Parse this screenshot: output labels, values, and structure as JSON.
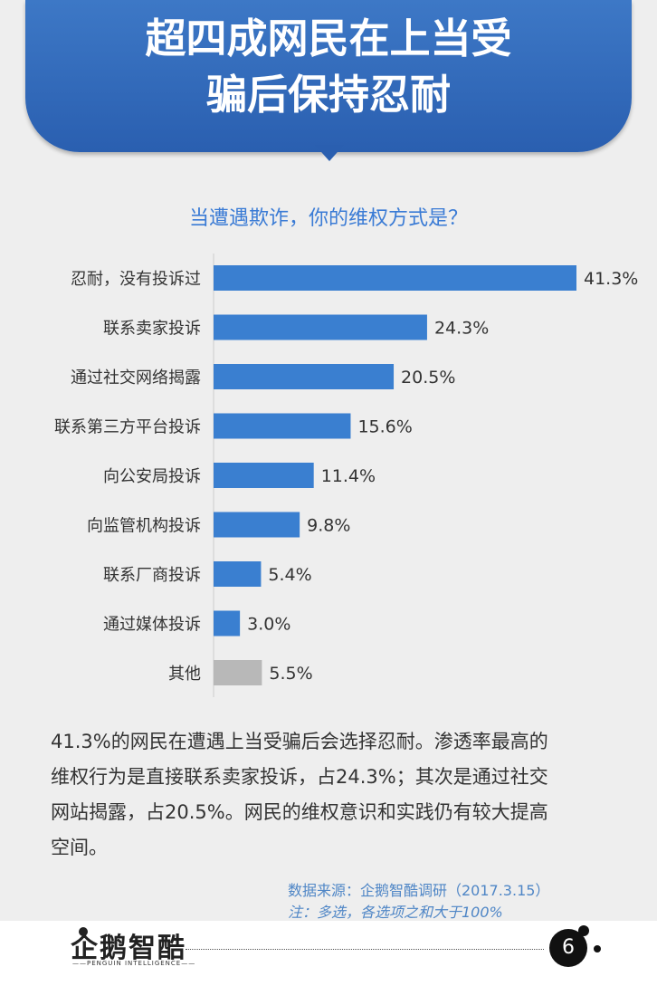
{
  "header": {
    "title_line1": "超四成网民在上当受",
    "title_line2": "骗后保持忍耐"
  },
  "chart_data": {
    "type": "bar",
    "orientation": "horizontal",
    "title": "当遭遇欺诈，你的维权方式是？",
    "categories": [
      "忍耐，没有投诉过",
      "联系卖家投诉",
      "通过社交网络揭露",
      "联系第三方平台投诉",
      "向公安局投诉",
      "向监管机构投诉",
      "联系厂商投诉",
      "通过媒体投诉",
      "其他"
    ],
    "values": [
      41.3,
      24.3,
      20.5,
      15.6,
      11.4,
      9.8,
      5.4,
      3.0,
      5.5
    ],
    "value_labels": [
      "41.3%",
      "24.3%",
      "20.5%",
      "15.6%",
      "11.4%",
      "9.8%",
      "5.4%",
      "3.0%",
      "5.5%"
    ],
    "unit": "%",
    "xlim": [
      0,
      42
    ],
    "grid": false,
    "bar_color": "#3a7fd0",
    "other_bar_color": "#b8b8b8"
  },
  "summary": {
    "line1": "41.3%的网民在遭遇上当受骗后会选择忍耐。渗透率最高的",
    "line2": "维权行为是直接联系卖家投诉，占24.3%；其次是通过社交",
    "line3": "网站揭露，占20.5%。网民的维权意识和实践仍有较大提高",
    "line4": "空间。"
  },
  "source": "数据来源：企鹅智酷调研（2017.3.15）",
  "note": "注：多选，各选项之和大于100%",
  "footer": {
    "logo_text": "企鹅智酷",
    "logo_sub": "——PENGUIN INTELLIGENCE——",
    "page_number": "6"
  }
}
